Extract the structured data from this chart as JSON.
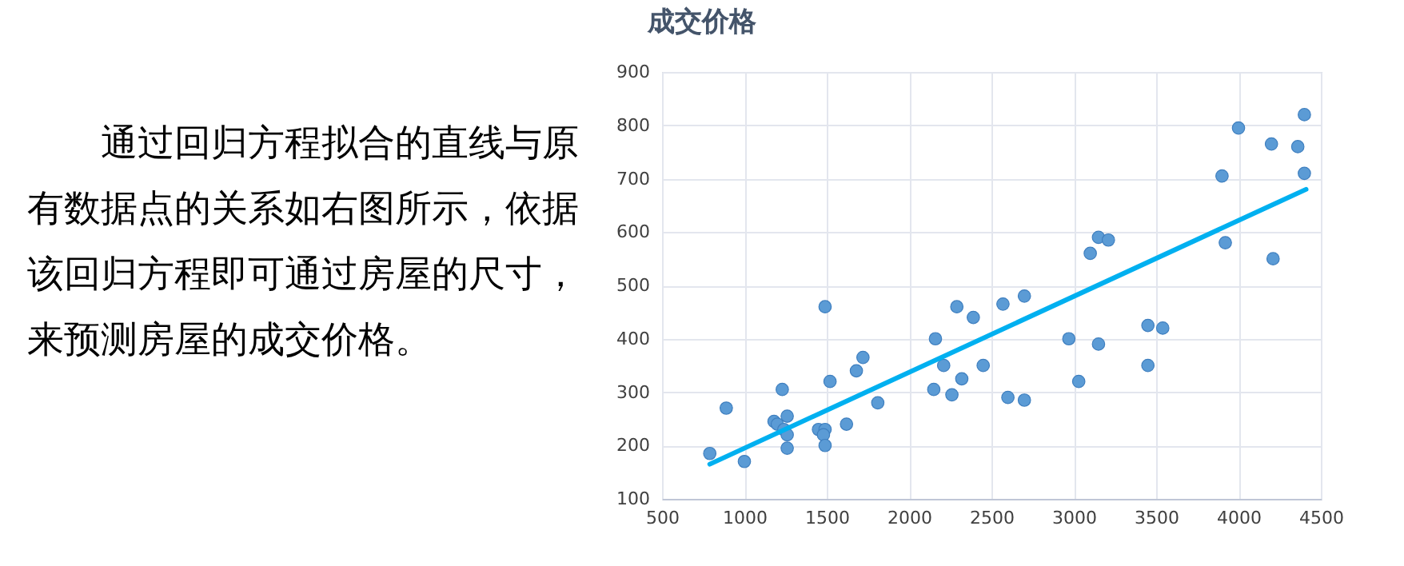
{
  "chart_data": [
    {
      "type": "other",
      "annotations": [
        "通过回归方程拟合的直线与原有数据点的关系如右图所示，依据该回归方程即可通过房屋的尺寸，来预测房屋的成交价格。"
      ]
    },
    {
      "type": "scatter",
      "title": "成交价格",
      "xlim": [
        500,
        4500
      ],
      "xticks": [
        500,
        1000,
        1500,
        2000,
        2500,
        3000,
        3500,
        4000,
        4500
      ],
      "ylim": [
        100,
        900
      ],
      "yticks": [
        100,
        200,
        300,
        400,
        500,
        600,
        700,
        800,
        900
      ],
      "grid": true,
      "marker": "circle",
      "series": [
        {
          "color": "#5b9bd5",
          "x": [
            790,
            890,
            1000,
            1180,
            1200,
            1230,
            1260,
            1240,
            1260,
            1260,
            1450,
            1490,
            1480,
            1490,
            1490,
            1520,
            1620,
            1680,
            1720,
            1810,
            2150,
            2160,
            2210,
            2260,
            2290,
            2320,
            2390,
            2450,
            2570,
            2700,
            2600,
            2700,
            2970,
            3030,
            3100,
            3150,
            3210,
            3150,
            3450,
            3540,
            3450,
            3900,
            4000,
            3920,
            4200,
            4210,
            4360,
            4400,
            4400
          ],
          "values": [
            185,
            270,
            170,
            245,
            240,
            305,
            255,
            230,
            220,
            195,
            230,
            230,
            220,
            200,
            460,
            320,
            240,
            340,
            365,
            280,
            305,
            400,
            350,
            295,
            460,
            325,
            440,
            350,
            465,
            480,
            290,
            285,
            400,
            320,
            560,
            590,
            585,
            390,
            425,
            420,
            350,
            705,
            795,
            580,
            765,
            550,
            760,
            820,
            710
          ]
        },
        {
          "type": "line",
          "color": "#00b0f0",
          "marker": "none",
          "x": [
            790,
            4410
          ],
          "values": [
            165,
            680
          ]
        }
      ]
    }
  ]
}
